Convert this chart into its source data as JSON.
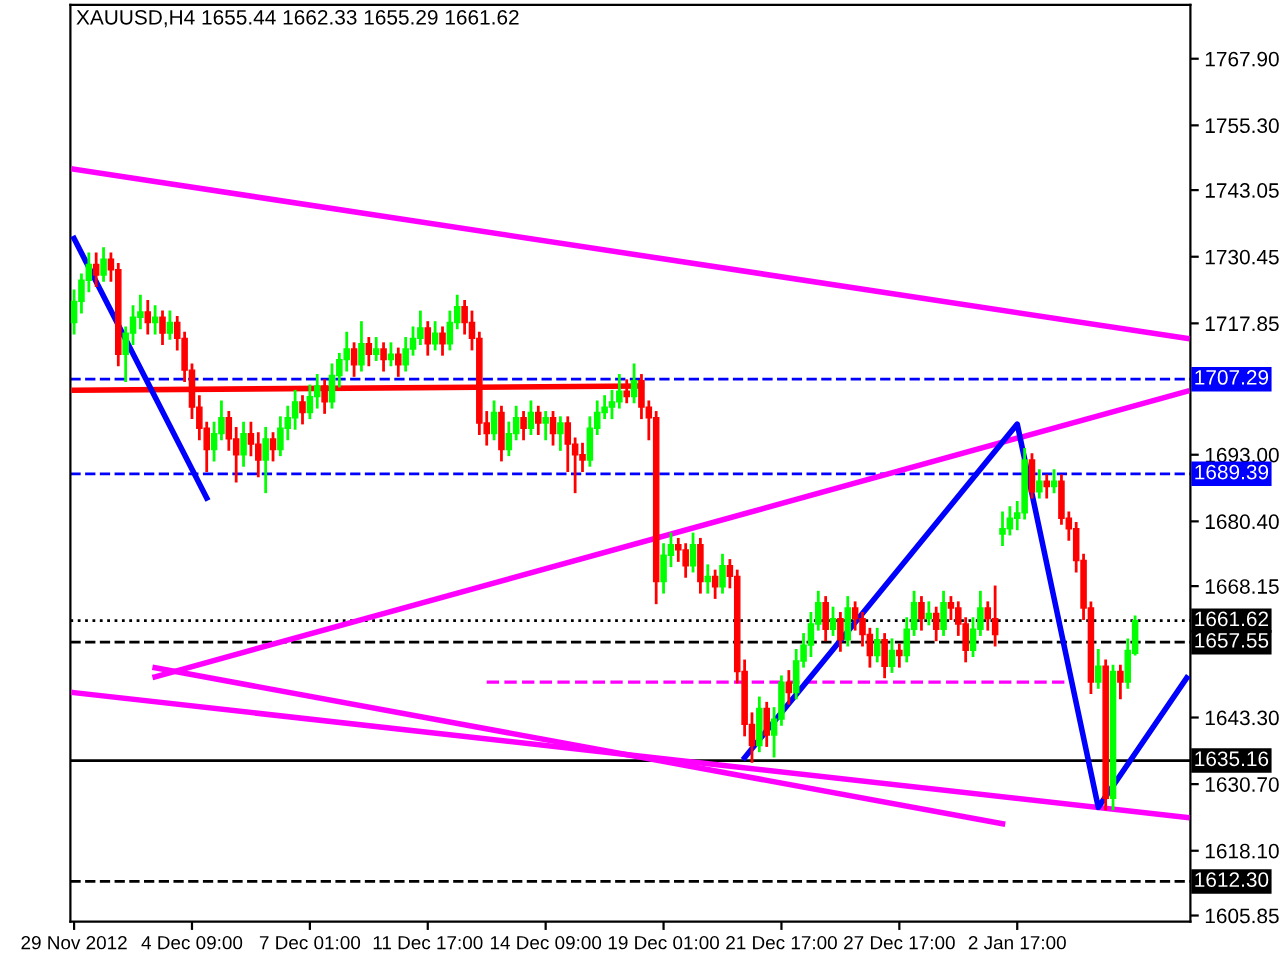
{
  "chart_data": {
    "type": "candlestick",
    "title": "XAUUSD,H4 1655.44 1662.33 1655.29 1661.62",
    "categories": [
      "29 Nov 2012",
      null,
      null,
      null,
      null,
      null,
      null,
      null,
      null,
      null,
      null,
      null,
      null,
      null,
      null,
      null,
      "4 Dec 09:00",
      null,
      null,
      null,
      null,
      null,
      null,
      null,
      null,
      null,
      null,
      null,
      null,
      null,
      null,
      null,
      "7 Dec 01:00",
      null,
      null,
      null,
      null,
      null,
      null,
      null,
      null,
      null,
      null,
      null,
      null,
      null,
      null,
      null,
      "11 Dec 17:00",
      null,
      null,
      null,
      null,
      null,
      null,
      null,
      null,
      null,
      null,
      null,
      null,
      null,
      null,
      null,
      "14 Dec 09:00",
      null,
      null,
      null,
      null,
      null,
      null,
      null,
      null,
      null,
      null,
      null,
      null,
      null,
      null,
      null,
      "19 Dec 01:00",
      null,
      null,
      null,
      null,
      null,
      null,
      null,
      null,
      null,
      null,
      null,
      null,
      null,
      null,
      null,
      "21 Dec 17:00",
      null,
      null,
      null,
      null,
      null,
      null,
      null,
      null,
      null,
      null,
      null,
      null,
      null,
      null,
      null,
      "27 Dec 17:00",
      null,
      null,
      null,
      null,
      null,
      null,
      null,
      null,
      null,
      null,
      null,
      null,
      null,
      null,
      null,
      "2 Jan 17:00",
      null,
      null,
      null,
      null,
      null,
      null,
      null,
      null,
      null,
      null,
      null,
      null,
      null,
      null,
      null,
      null,
      null,
      null,
      null,
      null,
      null,
      null,
      null
    ],
    "ohlc": [
      [
        1718,
        1724,
        1716,
        1722
      ],
      [
        1722,
        1727,
        1720,
        1726
      ],
      [
        1726,
        1731,
        1724,
        1729
      ],
      [
        1729,
        1731,
        1725,
        1727
      ],
      [
        1727,
        1732,
        1726,
        1730
      ],
      [
        1730,
        1731,
        1726,
        1728
      ],
      [
        1728,
        1729,
        1710,
        1712
      ],
      [
        1712,
        1717,
        1707,
        1716
      ],
      [
        1716,
        1721,
        1714,
        1719
      ],
      [
        1719,
        1723,
        1717,
        1720
      ],
      [
        1720,
        1722,
        1716,
        1718
      ],
      [
        1718,
        1721,
        1716,
        1719
      ],
      [
        1719,
        1720,
        1714,
        1716
      ],
      [
        1716,
        1720,
        1715,
        1718
      ],
      [
        1718,
        1719,
        1713,
        1715
      ],
      [
        1715,
        1716,
        1707,
        1709
      ],
      [
        1709,
        1710,
        1700,
        1702
      ],
      [
        1702,
        1704,
        1696,
        1698
      ],
      [
        1698,
        1699,
        1690,
        1694
      ],
      [
        1694,
        1699,
        1692,
        1697
      ],
      [
        1697,
        1703,
        1696,
        1700
      ],
      [
        1700,
        1701,
        1694,
        1696
      ],
      [
        1696,
        1698,
        1688,
        1693
      ],
      [
        1693,
        1699,
        1691,
        1697
      ],
      [
        1697,
        1699,
        1693,
        1695
      ],
      [
        1695,
        1697,
        1689,
        1692
      ],
      [
        1692,
        1698,
        1686,
        1696
      ],
      [
        1696,
        1697,
        1692,
        1694
      ],
      [
        1694,
        1700,
        1693,
        1698
      ],
      [
        1698,
        1702,
        1696,
        1700
      ],
      [
        1700,
        1705,
        1698,
        1703
      ],
      [
        1703,
        1704,
        1699,
        1701
      ],
      [
        1701,
        1706,
        1700,
        1704
      ],
      [
        1704,
        1708,
        1702,
        1706
      ],
      [
        1706,
        1707,
        1701,
        1703
      ],
      [
        1703,
        1710,
        1702,
        1708
      ],
      [
        1708,
        1712,
        1706,
        1711
      ],
      [
        1711,
        1716,
        1709,
        1713
      ],
      [
        1713,
        1714,
        1708,
        1710
      ],
      [
        1710,
        1718,
        1709,
        1714
      ],
      [
        1714,
        1715,
        1710,
        1712
      ],
      [
        1712,
        1715,
        1711,
        1713
      ],
      [
        1713,
        1714,
        1709,
        1711
      ],
      [
        1711,
        1714,
        1710,
        1712
      ],
      [
        1712,
        1713,
        1708,
        1710
      ],
      [
        1710,
        1715,
        1709,
        1713
      ],
      [
        1713,
        1717,
        1712,
        1715
      ],
      [
        1715,
        1720,
        1714,
        1717
      ],
      [
        1717,
        1718,
        1712,
        1714
      ],
      [
        1714,
        1718,
        1713,
        1716
      ],
      [
        1716,
        1717,
        1712,
        1714
      ],
      [
        1714,
        1720,
        1713,
        1718
      ],
      [
        1718,
        1723,
        1717,
        1721
      ],
      [
        1721,
        1722,
        1716,
        1718
      ],
      [
        1718,
        1720,
        1713,
        1715
      ],
      [
        1715,
        1716,
        1697,
        1699
      ],
      [
        1699,
        1701,
        1695,
        1697
      ],
      [
        1697,
        1703,
        1696,
        1701
      ],
      [
        1701,
        1702,
        1692,
        1694
      ],
      [
        1694,
        1699,
        1693,
        1697
      ],
      [
        1697,
        1702,
        1696,
        1700
      ],
      [
        1700,
        1701,
        1696,
        1698
      ],
      [
        1698,
        1703,
        1697,
        1701
      ],
      [
        1701,
        1702,
        1697,
        1699
      ],
      [
        1699,
        1701,
        1696,
        1700
      ],
      [
        1700,
        1701,
        1695,
        1697
      ],
      [
        1697,
        1700,
        1694,
        1699
      ],
      [
        1699,
        1700,
        1690,
        1695
      ],
      [
        1695,
        1696,
        1686,
        1693
      ],
      [
        1693,
        1695,
        1690,
        1692
      ],
      [
        1692,
        1700,
        1691,
        1698
      ],
      [
        1698,
        1703,
        1697,
        1701
      ],
      [
        1701,
        1704,
        1700,
        1702
      ],
      [
        1702,
        1705,
        1700,
        1703
      ],
      [
        1703,
        1708,
        1702,
        1705
      ],
      [
        1705,
        1707,
        1703,
        1704
      ],
      [
        1704,
        1710,
        1703,
        1707
      ],
      [
        1707,
        1708,
        1700,
        1702
      ],
      [
        1702,
        1703,
        1696,
        1700
      ],
      [
        1700,
        1701,
        1665,
        1669
      ],
      [
        1669,
        1676,
        1667,
        1674
      ],
      [
        1674,
        1678,
        1672,
        1676
      ],
      [
        1676,
        1677,
        1673,
        1675
      ],
      [
        1675,
        1676,
        1670,
        1672
      ],
      [
        1672,
        1678,
        1671,
        1676
      ],
      [
        1676,
        1677,
        1667,
        1669
      ],
      [
        1669,
        1672,
        1667,
        1670
      ],
      [
        1670,
        1671,
        1666,
        1668
      ],
      [
        1668,
        1674,
        1667,
        1672
      ],
      [
        1672,
        1673,
        1668,
        1670
      ],
      [
        1670,
        1671,
        1650,
        1652
      ],
      [
        1652,
        1654,
        1640,
        1642
      ],
      [
        1642,
        1644,
        1635,
        1638
      ],
      [
        1638,
        1647,
        1637,
        1645
      ],
      [
        1645,
        1646,
        1638,
        1640
      ],
      [
        1640,
        1645,
        1636,
        1643
      ],
      [
        1643,
        1651,
        1642,
        1650
      ],
      [
        1650,
        1652,
        1646,
        1648
      ],
      [
        1648,
        1656,
        1647,
        1654
      ],
      [
        1654,
        1659,
        1653,
        1657
      ],
      [
        1657,
        1663,
        1655,
        1661
      ],
      [
        1661,
        1667,
        1660,
        1665
      ],
      [
        1665,
        1666,
        1658,
        1660
      ],
      [
        1660,
        1664,
        1659,
        1662
      ],
      [
        1662,
        1663,
        1656,
        1658
      ],
      [
        1658,
        1666,
        1657,
        1664
      ],
      [
        1664,
        1665,
        1660,
        1662
      ],
      [
        1662,
        1663,
        1657,
        1659
      ],
      [
        1659,
        1660,
        1653,
        1655
      ],
      [
        1655,
        1660,
        1654,
        1658
      ],
      [
        1658,
        1659,
        1651,
        1653
      ],
      [
        1653,
        1658,
        1652,
        1656
      ],
      [
        1656,
        1657,
        1653,
        1655
      ],
      [
        1655,
        1662,
        1654,
        1660
      ],
      [
        1660,
        1667,
        1659,
        1665
      ],
      [
        1665,
        1666,
        1660,
        1662
      ],
      [
        1662,
        1665,
        1661,
        1663
      ],
      [
        1663,
        1664,
        1658,
        1660
      ],
      [
        1660,
        1667,
        1659,
        1665
      ],
      [
        1665,
        1666,
        1662,
        1664
      ],
      [
        1664,
        1665,
        1659,
        1661
      ],
      [
        1661,
        1662,
        1654,
        1656
      ],
      [
        1656,
        1662,
        1655,
        1660
      ],
      [
        1660,
        1667,
        1659,
        1664
      ],
      [
        1664,
        1665,
        1660,
        1662
      ],
      [
        1662,
        1668,
        1657,
        1659
      ],
      [
        1678,
        1682,
        1676,
        1679
      ],
      [
        1679,
        1683,
        1678,
        1681
      ],
      [
        1681,
        1684,
        1679,
        1682
      ],
      [
        1682,
        1694,
        1681,
        1692
      ],
      [
        1692,
        1693,
        1685,
        1686
      ],
      [
        1686,
        1690,
        1685,
        1688
      ],
      [
        1688,
        1689,
        1685,
        1687
      ],
      [
        1687,
        1690,
        1686,
        1688
      ],
      [
        1688,
        1689,
        1680,
        1681
      ],
      [
        1681,
        1682,
        1677,
        1679
      ],
      [
        1679,
        1680,
        1671,
        1673
      ],
      [
        1673,
        1674,
        1662,
        1664
      ],
      [
        1664,
        1665,
        1648,
        1650
      ],
      [
        1650,
        1656,
        1649,
        1653
      ],
      [
        1653,
        1654,
        1626,
        1628
      ],
      [
        1628,
        1653,
        1626,
        1652
      ],
      [
        1652,
        1653,
        1647,
        1650
      ],
      [
        1650,
        1658,
        1649,
        1656
      ],
      [
        1655.44,
        1662.33,
        1655.29,
        1661.62
      ],
      null,
      null,
      null,
      null,
      null,
      null,
      null
    ],
    "colors": [
      "#00ff00",
      "#00ff00",
      "#00ff00",
      "#ff0000",
      "#00ff00",
      "#ff0000",
      "#ff0000",
      "#00ff00",
      "#00ff00",
      "#00ff00",
      "#ff0000",
      "#00ff00",
      "#ff0000",
      "#00ff00",
      "#ff0000",
      "#ff0000",
      "#ff0000",
      "#ff0000",
      "#ff0000",
      "#00ff00",
      "#00ff00",
      "#ff0000",
      "#ff0000",
      "#00ff00",
      "#ff0000",
      "#ff0000",
      "#00ff00",
      "#ff0000",
      "#00ff00",
      "#00ff00",
      "#00ff00",
      "#ff0000",
      "#00ff00",
      "#00ff00",
      "#ff0000",
      "#00ff00",
      "#00ff00",
      "#00ff00",
      "#ff0000",
      "#00ff00",
      "#ff0000",
      "#00ff00",
      "#ff0000",
      "#00ff00",
      "#ff0000",
      "#00ff00",
      "#00ff00",
      "#00ff00",
      "#ff0000",
      "#00ff00",
      "#ff0000",
      "#00ff00",
      "#00ff00",
      "#ff0000",
      "#ff0000",
      "#ff0000",
      "#ff0000",
      "#00ff00",
      "#ff0000",
      "#00ff00",
      "#00ff00",
      "#ff0000",
      "#00ff00",
      "#ff0000",
      "#00ff00",
      "#ff0000",
      "#00ff00",
      "#ff0000",
      "#ff0000",
      "#ff0000",
      "#00ff00",
      "#00ff00",
      "#00ff00",
      "#00ff00",
      "#00ff00",
      "#ff0000",
      "#00ff00",
      "#ff0000",
      "#ff0000",
      "#ff0000",
      "#00ff00",
      "#00ff00",
      "#ff0000",
      "#ff0000",
      "#00ff00",
      "#ff0000",
      "#00ff00",
      "#ff0000",
      "#00ff00",
      "#ff0000",
      "#ff0000",
      "#ff0000",
      "#ff0000",
      "#00ff00",
      "#ff0000",
      "#00ff00",
      "#00ff00",
      "#ff0000",
      "#00ff00",
      "#00ff00",
      "#00ff00",
      "#00ff00",
      "#ff0000",
      "#00ff00",
      "#ff0000",
      "#00ff00",
      "#ff0000",
      "#ff0000",
      "#ff0000",
      "#00ff00",
      "#ff0000",
      "#00ff00",
      "#ff0000",
      "#00ff00",
      "#00ff00",
      "#ff0000",
      "#00ff00",
      "#ff0000",
      "#00ff00",
      "#ff0000",
      "#ff0000",
      "#ff0000",
      "#00ff00",
      "#00ff00",
      "#ff0000",
      "#ff0000",
      "#00ff00",
      "#00ff00",
      "#00ff00",
      "#00ff00",
      "#ff0000",
      "#00ff00",
      "#ff0000",
      "#00ff00",
      "#ff0000",
      "#ff0000",
      "#ff0000",
      "#ff0000",
      "#ff0000",
      "#00ff00",
      "#ff0000",
      "#00ff00",
      "#ff0000",
      "#00ff00",
      "#00ff00",
      null,
      null,
      null,
      null,
      null,
      null,
      null
    ],
    "series": [
      {
        "type": "line",
        "color": "#ff00ff",
        "values": [
          1747,
          null,
          null,
          null,
          null,
          null,
          null,
          null,
          null,
          null,
          null,
          null,
          null,
          null,
          null,
          null,
          null,
          null,
          null,
          null,
          null,
          null,
          null,
          null,
          null,
          null,
          null,
          null,
          null,
          null,
          null,
          null,
          null,
          null,
          null,
          null,
          null,
          null,
          null,
          null,
          null,
          null,
          null,
          null,
          null,
          null,
          null,
          null,
          null,
          null,
          null,
          null,
          null,
          null,
          null,
          null,
          null,
          null,
          null,
          null,
          null,
          null,
          null,
          null,
          null,
          null,
          null,
          null,
          null,
          null,
          null,
          null,
          null,
          null,
          null,
          null,
          null,
          null,
          null,
          null,
          null,
          null,
          null,
          null,
          null,
          null,
          null,
          null,
          null,
          null,
          null,
          null,
          null,
          null,
          null,
          null,
          null,
          null,
          null,
          null,
          null,
          null,
          null,
          null,
          null,
          null,
          null,
          null,
          null,
          null,
          null,
          null,
          null,
          null,
          null,
          null,
          null,
          null,
          null,
          null,
          null,
          null,
          null,
          null,
          null,
          null,
          null,
          null,
          null,
          null,
          null,
          null,
          null,
          null,
          null,
          null,
          null,
          null,
          null,
          null,
          null,
          null,
          null,
          null,
          null,
          null,
          null,
          null,
          null,
          null,
          null,
          1715
        ]
      },
      {
        "type": "line",
        "color": "#ff00ff",
        "values": [
          null,
          null,
          null,
          null,
          null,
          null,
          null,
          null,
          null,
          null,
          null,
          1651,
          null,
          null,
          null,
          null,
          null,
          null,
          null,
          null,
          null,
          null,
          null,
          null,
          null,
          null,
          null,
          null,
          null,
          null,
          null,
          null,
          null,
          null,
          null,
          null,
          null,
          null,
          null,
          null,
          null,
          null,
          null,
          null,
          null,
          null,
          null,
          null,
          null,
          null,
          null,
          null,
          null,
          null,
          null,
          null,
          null,
          null,
          null,
          null,
          null,
          null,
          null,
          null,
          null,
          null,
          null,
          null,
          null,
          null,
          null,
          null,
          null,
          null,
          null,
          null,
          null,
          null,
          null,
          null,
          null,
          null,
          null,
          null,
          null,
          null,
          null,
          null,
          null,
          null,
          null,
          null,
          null,
          null,
          null,
          null,
          null,
          null,
          null,
          null,
          null,
          null,
          null,
          null,
          null,
          null,
          null,
          null,
          null,
          null,
          null,
          null,
          null,
          null,
          null,
          null,
          null,
          null,
          null,
          null,
          null,
          null,
          null,
          null,
          null,
          null,
          null,
          null,
          null,
          null,
          null,
          null,
          null,
          null,
          null,
          null,
          null,
          null,
          null,
          null,
          null,
          null,
          null,
          null,
          null,
          null,
          null,
          null,
          null,
          null,
          null,
          1705
        ]
      },
      {
        "type": "line",
        "color": "#ff00ff",
        "values": [
          1648,
          null,
          null,
          null,
          null,
          null,
          null,
          null,
          null,
          null,
          null,
          null,
          null,
          null,
          null,
          null,
          null,
          null,
          null,
          null,
          null,
          null,
          null,
          null,
          null,
          null,
          null,
          null,
          null,
          null,
          null,
          null,
          null,
          null,
          null,
          null,
          null,
          null,
          null,
          null,
          null,
          null,
          null,
          null,
          null,
          null,
          null,
          null,
          null,
          null,
          null,
          null,
          null,
          null,
          null,
          null,
          null,
          null,
          null,
          null,
          null,
          null,
          null,
          null,
          null,
          null,
          null,
          null,
          null,
          null,
          null,
          null,
          null,
          null,
          null,
          null,
          null,
          null,
          null,
          null,
          null,
          null,
          null,
          null,
          null,
          null,
          null,
          null,
          null,
          null,
          null,
          null,
          null,
          null,
          null,
          null,
          null,
          null,
          null,
          null,
          null,
          null,
          null,
          null,
          null,
          null,
          null,
          null,
          null,
          null,
          null,
          null,
          null,
          null,
          null,
          null,
          null,
          null,
          null,
          null,
          null,
          null,
          null,
          null,
          null,
          null,
          null,
          null,
          null,
          null,
          null,
          null,
          null,
          null,
          null,
          null,
          null,
          null,
          null,
          null,
          null,
          null,
          null,
          null,
          null,
          null,
          null,
          null,
          null,
          null,
          null,
          1624.4
        ]
      },
      {
        "type": "line",
        "color": "#ff00ff",
        "values": [
          null,
          null,
          null,
          null,
          null,
          null,
          null,
          null,
          null,
          null,
          null,
          1652.7,
          null,
          null,
          null,
          null,
          null,
          null,
          null,
          null,
          null,
          null,
          null,
          null,
          null,
          null,
          null,
          null,
          null,
          null,
          null,
          null,
          null,
          null,
          null,
          null,
          null,
          null,
          null,
          null,
          null,
          null,
          null,
          null,
          null,
          null,
          null,
          null,
          null,
          null,
          null,
          null,
          null,
          null,
          null,
          null,
          null,
          null,
          null,
          null,
          null,
          null,
          null,
          null,
          null,
          null,
          null,
          null,
          null,
          null,
          null,
          null,
          null,
          null,
          null,
          null,
          null,
          null,
          null,
          null,
          null,
          null,
          null,
          null,
          null,
          null,
          null,
          null,
          null,
          null,
          null,
          null,
          null,
          null,
          null,
          null,
          null,
          null,
          null,
          null,
          null,
          null,
          null,
          null,
          null,
          null,
          null,
          null,
          null,
          null,
          null,
          null,
          null,
          null,
          null,
          null,
          null,
          null,
          null,
          null,
          null,
          null,
          null,
          null,
          null,
          null,
          1623.2,
          null,
          null,
          null,
          null,
          null,
          null,
          null,
          null,
          null,
          null,
          null,
          null,
          null,
          null,
          null,
          null,
          null,
          null,
          null,
          null,
          null,
          null,
          null,
          null,
          null
        ]
      },
      {
        "type": "line",
        "color": "#ff0000",
        "values": [
          1705.2,
          null,
          null,
          null,
          null,
          null,
          null,
          null,
          null,
          null,
          null,
          null,
          null,
          null,
          null,
          null,
          null,
          null,
          null,
          null,
          null,
          null,
          null,
          null,
          null,
          null,
          null,
          null,
          null,
          null,
          null,
          null,
          null,
          null,
          null,
          null,
          null,
          null,
          null,
          null,
          null,
          null,
          null,
          null,
          null,
          null,
          null,
          null,
          null,
          null,
          null,
          null,
          null,
          null,
          null,
          null,
          null,
          null,
          null,
          null,
          null,
          null,
          null,
          null,
          null,
          null,
          null,
          null,
          null,
          null,
          null,
          null,
          null,
          null,
          null,
          null,
          null,
          1706,
          null,
          null,
          null,
          null,
          null,
          null,
          null,
          null,
          null,
          null,
          null,
          null,
          null,
          null,
          null,
          null,
          null,
          null,
          null,
          null,
          null,
          null,
          null,
          null,
          null,
          null,
          null,
          null,
          null,
          null,
          null,
          null,
          null,
          null,
          null,
          null,
          null,
          null,
          null,
          null,
          null,
          null,
          null,
          null,
          null,
          null,
          null,
          null,
          null,
          null,
          null,
          null,
          null,
          null,
          null,
          null,
          null,
          null,
          null,
          null,
          null,
          null,
          null,
          null,
          null,
          null,
          null,
          null,
          null,
          null,
          null,
          null,
          null,
          null
        ]
      },
      {
        "type": "line",
        "color": "#ff00ff",
        "line_style": "dashed",
        "values": [
          null,
          null,
          null,
          null,
          null,
          null,
          null,
          null,
          null,
          null,
          null,
          null,
          null,
          null,
          null,
          null,
          null,
          null,
          null,
          null,
          null,
          null,
          null,
          null,
          null,
          null,
          null,
          null,
          null,
          null,
          null,
          null,
          null,
          null,
          null,
          null,
          null,
          null,
          null,
          null,
          null,
          null,
          null,
          null,
          null,
          null,
          null,
          null,
          null,
          null,
          null,
          null,
          null,
          null,
          null,
          null,
          1650,
          null,
          null,
          null,
          null,
          null,
          null,
          null,
          null,
          null,
          null,
          null,
          null,
          null,
          null,
          null,
          null,
          null,
          null,
          null,
          null,
          null,
          null,
          null,
          null,
          null,
          null,
          null,
          null,
          null,
          null,
          null,
          null,
          null,
          null,
          null,
          null,
          null,
          null,
          null,
          null,
          null,
          null,
          null,
          null,
          null,
          null,
          null,
          null,
          null,
          null,
          null,
          null,
          null,
          null,
          null,
          null,
          null,
          null,
          null,
          null,
          null,
          null,
          null,
          null,
          null,
          null,
          null,
          null,
          null,
          null,
          null,
          null,
          null,
          null,
          null,
          null,
          null,
          null,
          1650,
          null,
          null,
          null,
          null,
          null,
          null,
          null,
          null,
          null,
          null,
          null,
          null,
          null,
          null,
          null,
          null
        ]
      },
      {
        "type": "line",
        "color": "#0000ff",
        "values": [
          1733.9,
          null,
          null,
          null,
          null,
          null,
          null,
          null,
          null,
          null,
          null,
          null,
          null,
          null,
          null,
          null,
          null,
          null,
          1684.8,
          null,
          null,
          null,
          null,
          null,
          null,
          null,
          null,
          null,
          null,
          null,
          null,
          null,
          null,
          null,
          null,
          null,
          null,
          null,
          null,
          null,
          null,
          null,
          null,
          null,
          null,
          null,
          null,
          null,
          null,
          null,
          null,
          null,
          null,
          null,
          null,
          null,
          null,
          null,
          null,
          null,
          null,
          null,
          null,
          null,
          null,
          null,
          null,
          null,
          null,
          null,
          null,
          null,
          null,
          null,
          null,
          null,
          null,
          null,
          null,
          null,
          null,
          null,
          null,
          null,
          null,
          null,
          null,
          null,
          null,
          null,
          null,
          null,
          null,
          null,
          null,
          null,
          null,
          null,
          null,
          null,
          null,
          null,
          null,
          null,
          null,
          null,
          null,
          null,
          null,
          null,
          null,
          null,
          null,
          null,
          null,
          null,
          null,
          null,
          null,
          null,
          null,
          null,
          null,
          null,
          null,
          null,
          null,
          null,
          null,
          null,
          null,
          null,
          null,
          null,
          null,
          null,
          null,
          null,
          null,
          null,
          null,
          null,
          null,
          null,
          null,
          null,
          null,
          null,
          null,
          null,
          null,
          null
        ]
      },
      {
        "type": "line",
        "color": "#0000ff",
        "values": [
          null,
          null,
          null,
          null,
          null,
          null,
          null,
          null,
          null,
          null,
          null,
          null,
          null,
          null,
          null,
          null,
          null,
          null,
          null,
          null,
          null,
          null,
          null,
          null,
          null,
          null,
          null,
          null,
          null,
          null,
          null,
          null,
          null,
          null,
          null,
          null,
          null,
          null,
          null,
          null,
          null,
          null,
          null,
          null,
          null,
          null,
          null,
          null,
          null,
          null,
          null,
          null,
          null,
          null,
          null,
          null,
          null,
          null,
          null,
          null,
          null,
          null,
          null,
          null,
          null,
          null,
          null,
          null,
          null,
          null,
          null,
          null,
          null,
          null,
          null,
          null,
          null,
          null,
          null,
          null,
          null,
          null,
          null,
          null,
          null,
          null,
          null,
          null,
          null,
          null,
          null,
          1635.7,
          null,
          null,
          null,
          null,
          null,
          null,
          null,
          null,
          null,
          null,
          null,
          null,
          null,
          null,
          null,
          null,
          null,
          null,
          null,
          null,
          null,
          null,
          null,
          null,
          null,
          null,
          null,
          null,
          null,
          null,
          null,
          null,
          null,
          null,
          null,
          null,
          1698.8,
          null,
          null,
          null,
          null,
          null,
          null,
          null,
          null,
          null,
          null,
          1626.3,
          null,
          null,
          null,
          null,
          null,
          null,
          null,
          null,
          null,
          null,
          null,
          1650.8
        ]
      }
    ],
    "ref_lines": [
      {
        "axis": "y",
        "value": 1707.29,
        "label": "1707.29",
        "color": "#0000ff",
        "line_style": "dashed"
      },
      {
        "axis": "y",
        "value": 1689.39,
        "label": "1689.39",
        "color": "#0000ff",
        "line_style": "dashed"
      },
      {
        "axis": "y",
        "value": 1661.62,
        "label": "1661.62",
        "color": "#000000",
        "line_style": "dotted"
      },
      {
        "axis": "y",
        "value": 1657.55,
        "label": "1657.55",
        "color": "#000000",
        "line_style": "dashed"
      },
      {
        "axis": "y",
        "value": 1635.16,
        "label": "1635.16",
        "color": "#000000",
        "line_style": "solid"
      },
      {
        "axis": "y",
        "value": 1612.3,
        "label": "1612.30",
        "color": "#000000",
        "line_style": "dashed"
      }
    ],
    "ylim": [
      1604.7,
      1778.1
    ],
    "yticks": [
      {
        "value": 1767.9,
        "label": "1767.90"
      },
      {
        "value": 1755.3,
        "label": "1755.30"
      },
      {
        "value": 1743.05,
        "label": "1743.05"
      },
      {
        "value": 1730.45,
        "label": "1730.45"
      },
      {
        "value": 1717.85,
        "label": "1717.85"
      },
      {
        "value": 1693.0,
        "label": "1693.00"
      },
      {
        "value": 1680.4,
        "label": "1680.40"
      },
      {
        "value": 1668.15,
        "label": "1668.15"
      },
      {
        "value": 1643.3,
        "label": "1643.30"
      },
      {
        "value": 1630.7,
        "label": "1630.70"
      },
      {
        "value": 1618.1,
        "label": "1618.10"
      },
      {
        "value": 1605.85,
        "label": "1605.85"
      }
    ],
    "grid": false,
    "legend": false
  }
}
